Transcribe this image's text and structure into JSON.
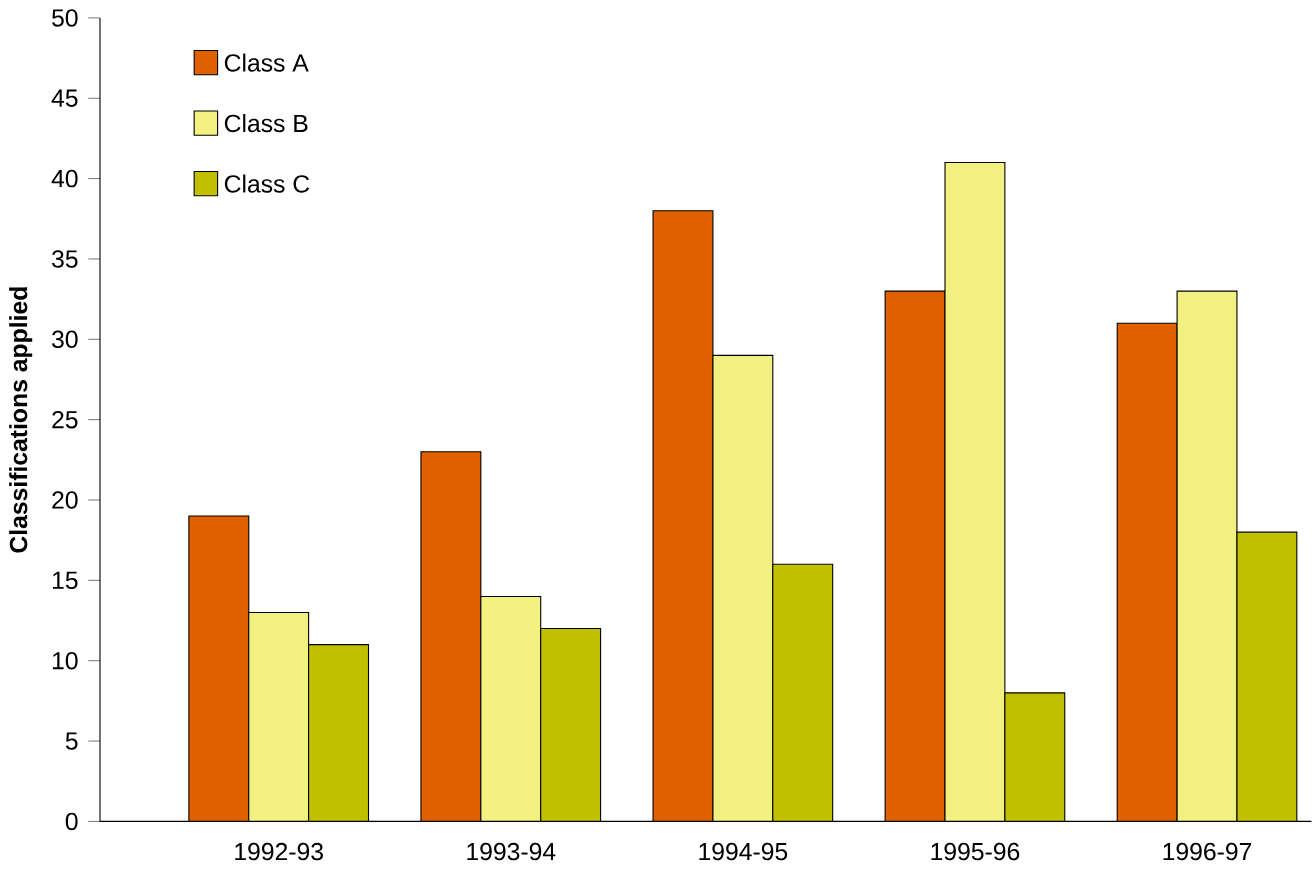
{
  "chart_data": {
    "type": "bar",
    "ylabel": "Classifications applied",
    "categories": [
      "1992-93",
      "1993-94",
      "1994-95",
      "1995-96",
      "1996-97"
    ],
    "series": [
      {
        "name": "Class A",
        "color": "#e06000",
        "values": [
          19,
          23,
          38,
          33,
          31
        ]
      },
      {
        "name": "Class B",
        "color": "#f2f080",
        "values": [
          13,
          14,
          29,
          41,
          33
        ]
      },
      {
        "name": "Class C",
        "color": "#c0c000",
        "values": [
          11,
          12,
          16,
          8,
          18
        ]
      }
    ],
    "ylim": [
      0,
      50
    ],
    "yticks": [
      0,
      5,
      10,
      15,
      20,
      25,
      30,
      35,
      40,
      45,
      50
    ],
    "grid": false,
    "legend": "top left"
  }
}
